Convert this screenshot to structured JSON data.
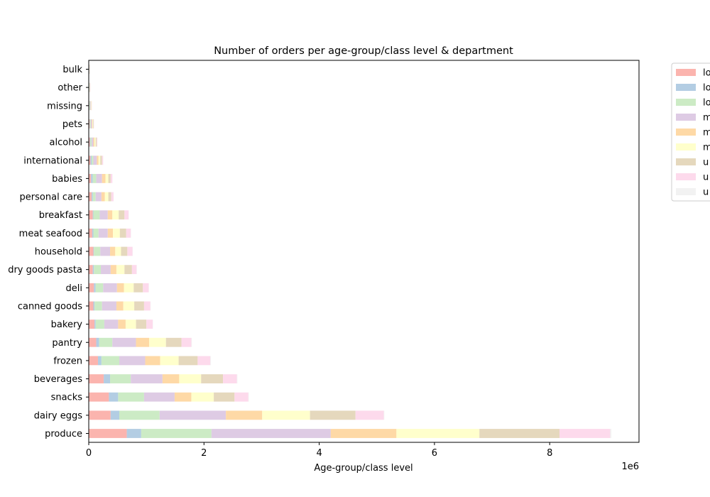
{
  "chart_data": {
    "type": "bar",
    "orientation": "horizontal",
    "stacked": true,
    "title": "Number of orders per age-group/class level & department",
    "xlabel": "Age-group/class level",
    "ylabel": "",
    "x_scale_label": "1e6",
    "x_ticks": [
      0,
      2,
      4,
      6,
      8
    ],
    "xlim": [
      0,
      9.55
    ],
    "grid": false,
    "legend_position": "outside-top-right",
    "categories": [
      "produce",
      "dairy eggs",
      "snacks",
      "beverages",
      "frozen",
      "pantry",
      "bakery",
      "canned goods",
      "deli",
      "dry goods pasta",
      "household",
      "meat seafood",
      "breakfast",
      "personal care",
      "babies",
      "international",
      "alcohol",
      "pets",
      "missing",
      "other",
      "bulk"
    ],
    "series": [
      {
        "name": "lo",
        "color": "#fbb4ae",
        "values": [
          0.66,
          0.38,
          0.35,
          0.26,
          0.16,
          0.13,
          0.1,
          0.08,
          0.09,
          0.07,
          0.08,
          0.06,
          0.07,
          0.05,
          0.04,
          0.03,
          0.02,
          0.015,
          0.01,
          0.005,
          0.005
        ]
      },
      {
        "name": "lo",
        "color": "#b3cde3",
        "values": [
          0.25,
          0.15,
          0.16,
          0.11,
          0.06,
          0.05,
          0.02,
          0.02,
          0.03,
          0.02,
          0.01,
          0.02,
          0.01,
          0.02,
          0.03,
          0.02,
          0.01,
          0.005,
          0.005,
          0.003,
          0.002
        ]
      },
      {
        "name": "lo",
        "color": "#ccebc5",
        "values": [
          1.22,
          0.7,
          0.45,
          0.36,
          0.31,
          0.23,
          0.15,
          0.13,
          0.13,
          0.12,
          0.11,
          0.09,
          0.11,
          0.05,
          0.06,
          0.03,
          0.02,
          0.015,
          0.01,
          0.004,
          0.003
        ]
      },
      {
        "name": "m",
        "color": "#decbe4",
        "values": [
          2.07,
          1.15,
          0.53,
          0.55,
          0.45,
          0.41,
          0.24,
          0.25,
          0.24,
          0.17,
          0.17,
          0.16,
          0.14,
          0.1,
          0.1,
          0.06,
          0.03,
          0.02,
          0.01,
          0.006,
          0.004
        ]
      },
      {
        "name": "m",
        "color": "#fed9a6",
        "values": [
          1.14,
          0.63,
          0.29,
          0.29,
          0.26,
          0.23,
          0.13,
          0.12,
          0.12,
          0.1,
          0.09,
          0.09,
          0.08,
          0.06,
          0.06,
          0.03,
          0.02,
          0.01,
          0.005,
          0.003,
          0.002
        ]
      },
      {
        "name": "m",
        "color": "#ffffcc",
        "values": [
          1.44,
          0.83,
          0.39,
          0.38,
          0.32,
          0.29,
          0.18,
          0.19,
          0.17,
          0.14,
          0.1,
          0.12,
          0.11,
          0.06,
          0.05,
          0.03,
          0.02,
          0.01,
          0.005,
          0.003,
          0.002
        ]
      },
      {
        "name": "u",
        "color": "#e5d8bd",
        "values": [
          1.39,
          0.79,
          0.36,
          0.38,
          0.33,
          0.27,
          0.18,
          0.17,
          0.16,
          0.13,
          0.11,
          0.11,
          0.1,
          0.05,
          0.04,
          0.03,
          0.02,
          0.01,
          0.005,
          0.003,
          0.002
        ]
      },
      {
        "name": "u",
        "color": "#fddaec",
        "values": [
          0.88,
          0.49,
          0.24,
          0.24,
          0.22,
          0.17,
          0.11,
          0.11,
          0.1,
          0.08,
          0.09,
          0.08,
          0.07,
          0.04,
          0.03,
          0.02,
          0.01,
          0.005,
          0.004,
          0.002,
          0.002
        ]
      },
      {
        "name": "u",
        "color": "#f2f2f2",
        "values": [
          0.02,
          0.01,
          0.01,
          0.01,
          0.01,
          0.01,
          0.005,
          0.005,
          0.005,
          0.005,
          0.005,
          0.005,
          0.005,
          0.003,
          0.003,
          0.002,
          0.001,
          0.001,
          0.001,
          0.001,
          0.001
        ]
      }
    ]
  }
}
